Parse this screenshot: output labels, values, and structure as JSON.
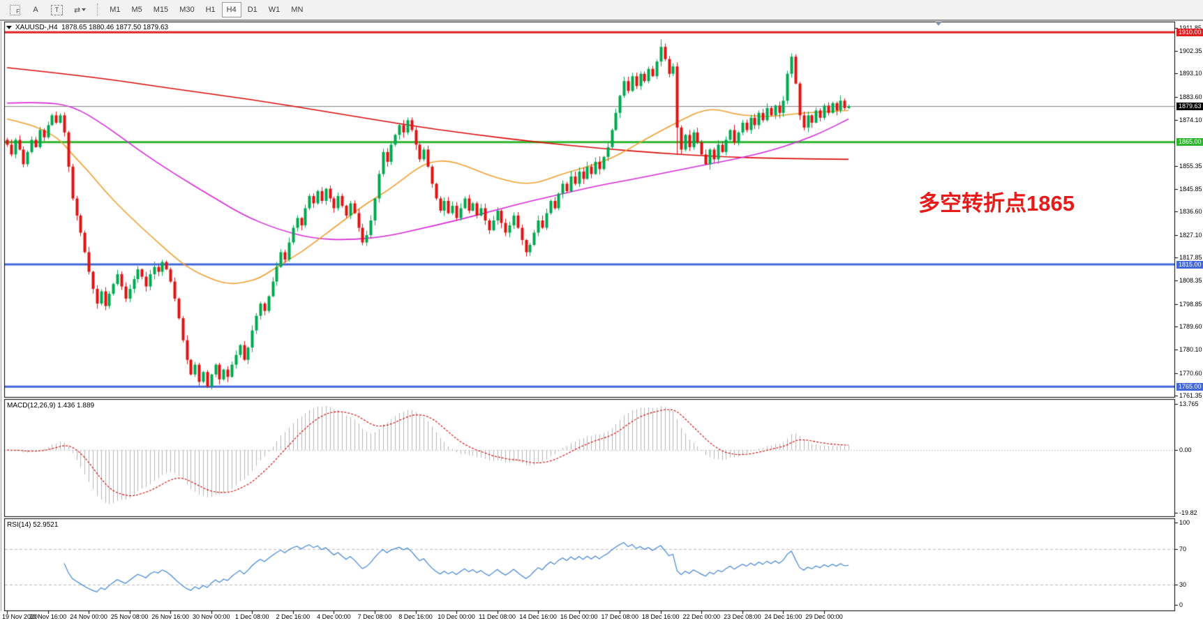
{
  "toolbar": {
    "tools": {
      "f_label": "F",
      "a_label": "A",
      "t_label": "T",
      "arrows_label": "⇄"
    },
    "timeframes": [
      {
        "label": "M1",
        "active": false
      },
      {
        "label": "M5",
        "active": false
      },
      {
        "label": "M15",
        "active": false
      },
      {
        "label": "M30",
        "active": false
      },
      {
        "label": "H1",
        "active": false
      },
      {
        "label": "H4",
        "active": true
      },
      {
        "label": "D1",
        "active": false
      },
      {
        "label": "W1",
        "active": false
      },
      {
        "label": "MN",
        "active": false
      }
    ]
  },
  "chart": {
    "title_symbol": "XAUUSD-,H4",
    "title_ohlc": "1878.65 1880.46 1877.50 1879.63"
  },
  "annotation": {
    "text": "多空转折点1865",
    "color": "#e81a1a"
  },
  "price_axis": {
    "ticks": [
      "1911.85",
      "1902.35",
      "1893.10",
      "1883.60",
      "1874.10",
      "1855.35",
      "1845.85",
      "1836.60",
      "1827.10",
      "1817.85",
      "1808.35",
      "1798.85",
      "1789.60",
      "1780.10",
      "1770.60",
      "1761.35"
    ],
    "levels": [
      {
        "price": 1910.0,
        "label": "1910.00",
        "color": "#e02020",
        "width": 3,
        "current": false
      },
      {
        "price": 1879.63,
        "label": "1879.63",
        "color": "#000000",
        "line_color": "#808080",
        "width": 1,
        "current": true
      },
      {
        "price": 1865.0,
        "label": "1865.00",
        "color": "#2db52d",
        "width": 3,
        "current": false
      },
      {
        "price": 1815.0,
        "label": "1815.00",
        "color": "#4166d8",
        "width": 3,
        "current": false
      },
      {
        "price": 1765.0,
        "label": "1765.00",
        "color": "#4166d8",
        "width": 3,
        "current": false
      }
    ]
  },
  "indicators": {
    "macd": {
      "label": "MACD(12,26,9) 1.436 1.889",
      "scale": [
        "13.765",
        "0.00",
        "-19.82"
      ]
    },
    "rsi": {
      "label": "RSI(14) 52.9521",
      "scale": [
        "100",
        "70",
        "30",
        "0"
      ],
      "levels": [
        70,
        30
      ]
    }
  },
  "time_axis": {
    "labels": [
      "19 Nov 2020",
      "20 Nov 16:00",
      "24 Nov 00:00",
      "25 Nov 08:00",
      "26 Nov 16:00",
      "30 Nov 00:00",
      "1 Dec 08:00",
      "2 Dec 16:00",
      "4 Dec 00:00",
      "7 Dec 08:00",
      "8 Dec 16:00",
      "10 Dec 00:00",
      "11 Dec 08:00",
      "14 Dec 16:00",
      "16 Dec 00:00",
      "17 Dec 08:00",
      "18 Dec 16:00",
      "22 Dec 00:00",
      "23 Dec 08:00",
      "24 Dec 16:00",
      "29 Dec 00:00"
    ]
  },
  "chart_data": {
    "type": "candlestick",
    "symbol": "XAUUSD-",
    "timeframe": "H4",
    "ohlc_current": {
      "open": 1878.65,
      "high": 1880.46,
      "low": 1877.5,
      "close": 1879.63
    },
    "y_axis_range": [
      1761.35,
      1911.85
    ],
    "first_open": 1866,
    "closes": [
      1864,
      1860,
      1866,
      1862,
      1856,
      1861,
      1866,
      1863,
      1870,
      1867,
      1872,
      1876,
      1873,
      1876,
      1869,
      1855,
      1842,
      1835,
      1828,
      1820,
      1812,
      1805,
      1799,
      1804,
      1798,
      1803,
      1807,
      1811,
      1806,
      1801,
      1805,
      1809,
      1813,
      1810,
      1806,
      1811,
      1814,
      1812,
      1816,
      1813,
      1808,
      1801,
      1793,
      1784,
      1776,
      1770,
      1774,
      1767,
      1771,
      1765,
      1770,
      1774,
      1768,
      1772,
      1769,
      1774,
      1778,
      1782,
      1776,
      1781,
      1788,
      1794,
      1799,
      1796,
      1802,
      1808,
      1814,
      1820,
      1817,
      1824,
      1830,
      1834,
      1831,
      1838,
      1843,
      1840,
      1845,
      1841,
      1846,
      1842,
      1838,
      1843,
      1839,
      1835,
      1840,
      1836,
      1830,
      1824,
      1827,
      1833,
      1842,
      1852,
      1861,
      1857,
      1864,
      1868,
      1872,
      1869,
      1874,
      1870,
      1864,
      1858,
      1862,
      1855,
      1848,
      1842,
      1837,
      1841,
      1836,
      1839,
      1834,
      1838,
      1842,
      1837,
      1840,
      1835,
      1838,
      1833,
      1829,
      1833,
      1837,
      1832,
      1828,
      1831,
      1835,
      1830,
      1825,
      1820,
      1823,
      1828,
      1833,
      1830,
      1836,
      1841,
      1838,
      1844,
      1848,
      1845,
      1851,
      1848,
      1853,
      1850,
      1855,
      1852,
      1857,
      1854,
      1859,
      1863,
      1870,
      1877,
      1884,
      1890,
      1886,
      1892,
      1888,
      1893,
      1890,
      1895,
      1892,
      1898,
      1904,
      1899,
      1893,
      1896,
      1871,
      1862,
      1868,
      1863,
      1869,
      1865,
      1860,
      1856,
      1862,
      1858,
      1864,
      1861,
      1866,
      1870,
      1865,
      1869,
      1873,
      1870,
      1875,
      1872,
      1877,
      1874,
      1879,
      1876,
      1880,
      1877,
      1882,
      1893,
      1900,
      1889,
      1876,
      1871,
      1876,
      1873,
      1878,
      1875,
      1880,
      1877,
      1881,
      1878,
      1882,
      1879,
      1879.63
    ],
    "wick_overrides": {
      "160": [
        2.5,
        0.5
      ],
      "164": [
        0.5,
        10
      ]
    },
    "moving_averages": [
      {
        "name": "ma-slow-red",
        "color": "#dc0a0a",
        "points": [
          [
            0,
            1895.5
          ],
          [
            20,
            1892
          ],
          [
            40,
            1887
          ],
          [
            60,
            1882.5
          ],
          [
            80,
            1877
          ],
          [
            100,
            1871.5
          ],
          [
            115,
            1868
          ],
          [
            130,
            1865
          ],
          [
            145,
            1862.5
          ],
          [
            160,
            1860.5
          ],
          [
            175,
            1859
          ],
          [
            190,
            1858.3
          ],
          [
            206,
            1858
          ]
        ]
      },
      {
        "name": "ma-mid-magenta",
        "color": "#d82ad8",
        "points": [
          [
            0,
            1881
          ],
          [
            8,
            1881.5
          ],
          [
            16,
            1880
          ],
          [
            24,
            1872
          ],
          [
            32,
            1862
          ],
          [
            41,
            1852
          ],
          [
            50,
            1843
          ],
          [
            58,
            1835
          ],
          [
            66,
            1829.5
          ],
          [
            75,
            1825.5
          ],
          [
            84,
            1825
          ],
          [
            93,
            1826.5
          ],
          [
            101,
            1829.5
          ],
          [
            110,
            1833
          ],
          [
            118,
            1836.5
          ],
          [
            127,
            1840.5
          ],
          [
            135,
            1843.5
          ],
          [
            144,
            1847
          ],
          [
            152,
            1849.5
          ],
          [
            161,
            1852.5
          ],
          [
            170,
            1855.5
          ],
          [
            178,
            1858
          ],
          [
            187,
            1861.5
          ],
          [
            195,
            1866
          ],
          [
            200,
            1869.5
          ],
          [
            206,
            1874.5
          ]
        ]
      },
      {
        "name": "ma-fast-orange",
        "color": "#f0a030",
        "points": [
          [
            0,
            1874.5
          ],
          [
            5,
            1872.5
          ],
          [
            9,
            1870
          ],
          [
            13,
            1866
          ],
          [
            16,
            1860
          ],
          [
            20,
            1853
          ],
          [
            24,
            1845
          ],
          [
            28,
            1838
          ],
          [
            33,
            1830
          ],
          [
            37,
            1824
          ],
          [
            41,
            1818
          ],
          [
            45,
            1813
          ],
          [
            50,
            1809
          ],
          [
            54,
            1807
          ],
          [
            58,
            1807.5
          ],
          [
            62,
            1809.5
          ],
          [
            67,
            1815
          ],
          [
            72,
            1820
          ],
          [
            76,
            1825
          ],
          [
            80,
            1830
          ],
          [
            84,
            1835
          ],
          [
            88,
            1840
          ],
          [
            93,
            1845
          ],
          [
            97,
            1850
          ],
          [
            101,
            1855
          ],
          [
            104,
            1857
          ],
          [
            108,
            1857.5
          ],
          [
            112,
            1855.5
          ],
          [
            115,
            1853.5
          ],
          [
            118,
            1851.5
          ],
          [
            122,
            1849.5
          ],
          [
            126,
            1848
          ],
          [
            130,
            1848.5
          ],
          [
            135,
            1851.5
          ],
          [
            140,
            1854
          ],
          [
            144,
            1856
          ],
          [
            148,
            1858.5
          ],
          [
            152,
            1862
          ],
          [
            156,
            1866
          ],
          [
            161,
            1870.5
          ],
          [
            165,
            1874
          ],
          [
            170,
            1878
          ],
          [
            174,
            1878.5
          ],
          [
            178,
            1876.5
          ],
          [
            182,
            1875.8
          ],
          [
            186,
            1875.5
          ],
          [
            190,
            1876
          ],
          [
            195,
            1877
          ],
          [
            200,
            1877.5
          ],
          [
            206,
            1878
          ]
        ]
      }
    ],
    "macd_params": [
      12,
      26,
      9
    ],
    "macd_values_label": [
      1.436,
      1.889
    ],
    "rsi_period": 14,
    "rsi_value_label": 52.9521
  },
  "colors": {
    "candle_up": "#00a94f",
    "candle_down": "#e01212",
    "macd_hist": "#b4b4b4",
    "macd_signal": "#d40000",
    "rsi_line": "#3f85d6",
    "rsi_level_dash": "#bbbbbb",
    "axis_line": "#000000",
    "toolbar_bg": "#f2f2f2"
  }
}
